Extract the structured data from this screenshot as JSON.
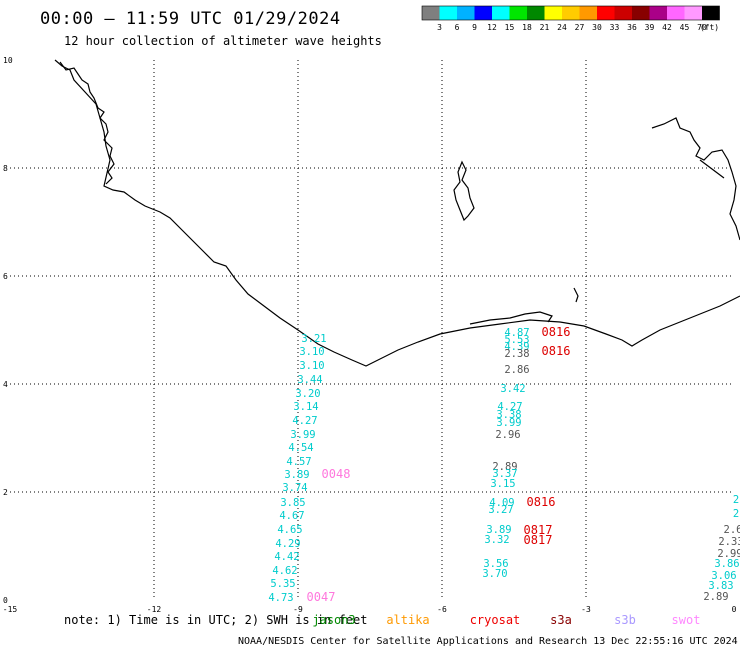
{
  "title": "00:00 – 11:59 UTC 01/29/2024",
  "subtitle": "12 hour collection of altimeter wave heights",
  "colorbar": {
    "colors": [
      "#7f7f7f",
      "#00ffff",
      "#00b2ff",
      "#0000ff",
      "#00ffff",
      "#00e600",
      "#008800",
      "#ffff00",
      "#ffcc00",
      "#ff9900",
      "#ff0000",
      "#cc0000",
      "#880000",
      "#aa0088",
      "#ff66ff",
      "#ff99ff",
      "#000000"
    ],
    "ticks": [
      "3",
      "6",
      "9",
      "12",
      "15",
      "18",
      "21",
      "24",
      "27",
      "30",
      "33",
      "36",
      "39",
      "42",
      "45",
      "70"
    ],
    "unit": "(ft)"
  },
  "axes": {
    "x_ticks": [
      "-15",
      "-12",
      "-9",
      "-6",
      "-3",
      "0"
    ],
    "y_ticks": [
      "0",
      "2",
      "4",
      "6",
      "8",
      "10"
    ]
  },
  "track_values": {
    "track_west": [
      "3.21",
      "3.10",
      "3.10",
      "3.44",
      "3.20",
      "3.14",
      "4.27",
      "3.99",
      "4.54",
      "4.57",
      "3.89",
      "3.74",
      "3.85",
      "4.67",
      "4.65",
      "4.29",
      "4.42",
      "4.62",
      "5.35",
      "4.73"
    ],
    "track_mid": [
      "4.87",
      "5.53",
      "4.39",
      "2.38",
      "2.86",
      "3.42",
      "4.27",
      "3.38",
      "3.99",
      "2.96",
      "2.89",
      "3.37",
      "3.15",
      "4.09",
      "3.27",
      "3.89",
      "3.32",
      "3.56",
      "3.70"
    ],
    "track_east": [
      "2",
      "2",
      "2.6",
      "2.33",
      "2.99",
      "3.86",
      "3.06",
      "3.83",
      "2.89"
    ]
  },
  "time_labels": {
    "west_top": "0048",
    "west_bottom": "0047",
    "mid_upper_1": "0816",
    "mid_upper_2": "0816",
    "mid_lower_1": "0816",
    "mid_lower_2": "0817",
    "mid_lower_3": "0817"
  },
  "colors": {
    "track_text": "#00cccc",
    "label_gray": "#555555",
    "time_red": "#dd0000",
    "time_pink": "#ff77dd"
  },
  "note": {
    "text": "note: 1) Time is in UTC; 2) SWH is in feet",
    "satellites": [
      {
        "name": "jason3",
        "color": "#008800"
      },
      {
        "name": "altika",
        "color": "#ff9900"
      },
      {
        "name": "cryosat",
        "color": "#ee0000"
      },
      {
        "name": "s3a",
        "color": "#880000"
      },
      {
        "name": "s3b",
        "color": "#aa99ff"
      },
      {
        "name": "swot",
        "color": "#ff88ff"
      }
    ]
  },
  "credit": "NOAA/NESDIS Center for Satellite Applications and Research    13 Dec 22:55:16 UTC 2024"
}
